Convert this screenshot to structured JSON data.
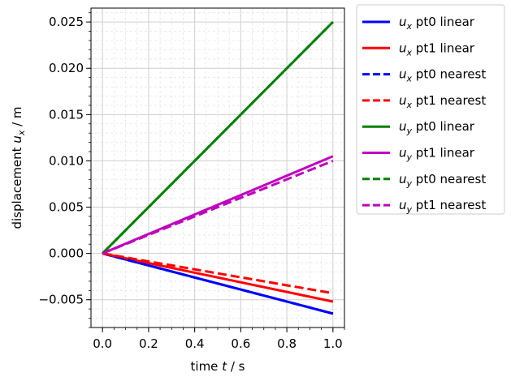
{
  "chart_data": {
    "type": "line",
    "title": "",
    "xlabel": {
      "main": "time ",
      "var": "t",
      "unit": " / s"
    },
    "ylabel": {
      "main": "displacement ",
      "var": "u",
      "sub": "x",
      "unit": " / m"
    },
    "xlim": [
      -0.05,
      1.05
    ],
    "ylim": [
      -0.008,
      0.0265
    ],
    "xticks": [
      0.0,
      0.2,
      0.4,
      0.6,
      0.8,
      1.0
    ],
    "xtick_labels": [
      "0.0",
      "0.2",
      "0.4",
      "0.6",
      "0.8",
      "1.0"
    ],
    "yticks": [
      -0.005,
      0.0,
      0.005,
      0.01,
      0.015,
      0.02,
      0.025
    ],
    "ytick_labels": [
      "−0.005",
      "0.000",
      "0.005",
      "0.010",
      "0.015",
      "0.020",
      "0.025"
    ],
    "grid": true,
    "minor_grid": true,
    "legend_position": "outside-right-top",
    "series": [
      {
        "name": "pt0 linear",
        "var": "u",
        "sub": "x",
        "color": "#0000ff",
        "dash": "solid",
        "x": [
          0,
          1
        ],
        "y": [
          0,
          -0.0065
        ]
      },
      {
        "name": "pt1 linear",
        "var": "u",
        "sub": "x",
        "color": "#ff0000",
        "dash": "solid",
        "x": [
          0,
          1
        ],
        "y": [
          0,
          -0.0052
        ]
      },
      {
        "name": "pt0 nearest",
        "var": "u",
        "sub": "x",
        "color": "#0000ff",
        "dash": "dashed",
        "x": [
          0,
          1
        ],
        "y": [
          0,
          -0.0065
        ]
      },
      {
        "name": "pt1 nearest",
        "var": "u",
        "sub": "x",
        "color": "#ff0000",
        "dash": "dashed",
        "x": [
          0,
          1
        ],
        "y": [
          0,
          -0.0043
        ]
      },
      {
        "name": "pt0 linear",
        "var": "u",
        "sub": "y",
        "color": "#008000",
        "dash": "solid",
        "x": [
          0,
          1
        ],
        "y": [
          0,
          0.025
        ]
      },
      {
        "name": "pt1 linear",
        "var": "u",
        "sub": "y",
        "color": "#bf00bf",
        "dash": "solid",
        "x": [
          0,
          1
        ],
        "y": [
          0,
          0.0105
        ]
      },
      {
        "name": "pt0 nearest",
        "var": "u",
        "sub": "y",
        "color": "#008000",
        "dash": "dashed",
        "x": [
          0,
          1
        ],
        "y": [
          0,
          0.025
        ]
      },
      {
        "name": "pt1 nearest",
        "var": "u",
        "sub": "y",
        "color": "#bf00bf",
        "dash": "dashed",
        "x": [
          0,
          1
        ],
        "y": [
          0,
          0.01
        ]
      }
    ]
  }
}
